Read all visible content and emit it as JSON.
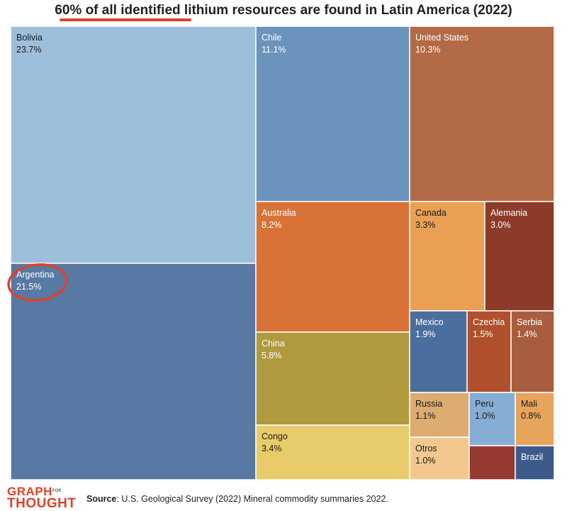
{
  "title": "60% of all identified lithium resources are found in Latin America (2022)",
  "colors": {
    "bolivia": "#9dbfdc",
    "argentina": "#5779a3",
    "chile": "#6b93bc",
    "united_states": "#b36a46",
    "australia": "#d87236",
    "china": "#b09a3f",
    "congo": "#e8cc6b",
    "canada": "#e9a053",
    "alemania": "#8c3b28",
    "mexico": "#4c6e9e",
    "czechia": "#b1502c",
    "serbia": "#a85e3e",
    "russia": "#dcac71",
    "otros": "#f3c88f",
    "peru": "#86add4",
    "mali": "#e7a55c",
    "unlabeled": "#943a31",
    "brazil": "#3c5b8b",
    "highlight": "#e0402a"
  },
  "chart_data": {
    "type": "treemap",
    "title": "60% of all identified lithium resources are found in Latin America (2022)",
    "unit": "%",
    "items": [
      {
        "name": "Bolivia",
        "value": 23.7,
        "label": "23.7%"
      },
      {
        "name": "Argentina",
        "value": 21.5,
        "label": "21.5%"
      },
      {
        "name": "Chile",
        "value": 11.1,
        "label": "11.1%"
      },
      {
        "name": "United States",
        "value": 10.3,
        "label": "10.3%"
      },
      {
        "name": "Australia",
        "value": 8.2,
        "label": "8.2%"
      },
      {
        "name": "China",
        "value": 5.8,
        "label": "5.8%"
      },
      {
        "name": "Congo",
        "value": 3.4,
        "label": "3.4%"
      },
      {
        "name": "Canada",
        "value": 3.3,
        "label": "3.3%"
      },
      {
        "name": "Alemania",
        "value": 3.0,
        "label": "3.0%"
      },
      {
        "name": "Mexico",
        "value": 1.9,
        "label": "1.9%"
      },
      {
        "name": "Czechia",
        "value": 1.5,
        "label": "1.5%"
      },
      {
        "name": "Serbia",
        "value": 1.4,
        "label": "1.4%"
      },
      {
        "name": "Russia",
        "value": 1.1,
        "label": "1.1%"
      },
      {
        "name": "Otros",
        "value": 1.0,
        "label": "1.0%"
      },
      {
        "name": "Peru",
        "value": 1.0,
        "label": "1.0%"
      },
      {
        "name": "Mali",
        "value": 0.8,
        "label": "0.8%"
      },
      {
        "name": "",
        "value": 0.7,
        "label": ""
      },
      {
        "name": "Brazil",
        "value": 0.6,
        "label": ""
      }
    ],
    "highlighted": "Argentina"
  },
  "footer": {
    "logo_line1": "GRAPH",
    "logo_small": "FOR",
    "logo_line2": "THOUGHT",
    "source_label": "Source",
    "source_text": ": U.S. Geological Survey (2022) Mineral commodity summaries 2022."
  }
}
